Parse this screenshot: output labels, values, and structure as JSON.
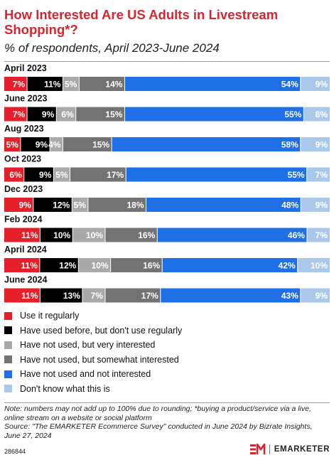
{
  "header": {
    "title": "How Interested Are US Adults in Livestream Shopping*?",
    "subtitle": "% of respondents, April 2023-June 2024"
  },
  "chart_data": {
    "type": "bar",
    "orientation": "horizontal",
    "stacked": true,
    "categories": [
      "April 2023",
      "June 2023",
      "Aug 2023",
      "Oct 2023",
      "Dec 2023",
      "Feb 2024",
      "April 2024",
      "June 2024"
    ],
    "series": [
      {
        "name": "Use it regularly",
        "color": "#e5202a",
        "values": [
          7,
          7,
          5,
          6,
          9,
          11,
          11,
          11
        ]
      },
      {
        "name": "Have used before, but don't use regularly",
        "color": "#000000",
        "values": [
          11,
          9,
          9,
          9,
          12,
          10,
          12,
          13
        ]
      },
      {
        "name": "Have not used, but very interested",
        "color": "#a9a9a9",
        "values": [
          5,
          6,
          4,
          5,
          5,
          10,
          10,
          7
        ]
      },
      {
        "name": "Have not used, but somewhat interested",
        "color": "#737373",
        "values": [
          14,
          15,
          15,
          17,
          18,
          16,
          16,
          17
        ]
      },
      {
        "name": "Have not used and not interested",
        "color": "#1f6fe6",
        "values": [
          54,
          55,
          58,
          55,
          48,
          46,
          42,
          43
        ]
      },
      {
        "name": "Don't know what this is",
        "color": "#aac9ea",
        "values": [
          9,
          8,
          9,
          7,
          9,
          7,
          10,
          9
        ]
      }
    ],
    "data_labels": true,
    "label_suffix": "%",
    "legend_position": "bottom"
  },
  "footer": {
    "note": "Note: numbers may not add up to 100% due to rounding; *buying a product/service via a live, online stream on a website or social platform",
    "source": "Source: \"The EMARKETER Ecommerce Survey\" conducted in June 2024 by Bizrate Insights, June 27, 2024",
    "chart_id": "286844",
    "brand": "EMARKETER",
    "brand_color": "#e5202a"
  }
}
